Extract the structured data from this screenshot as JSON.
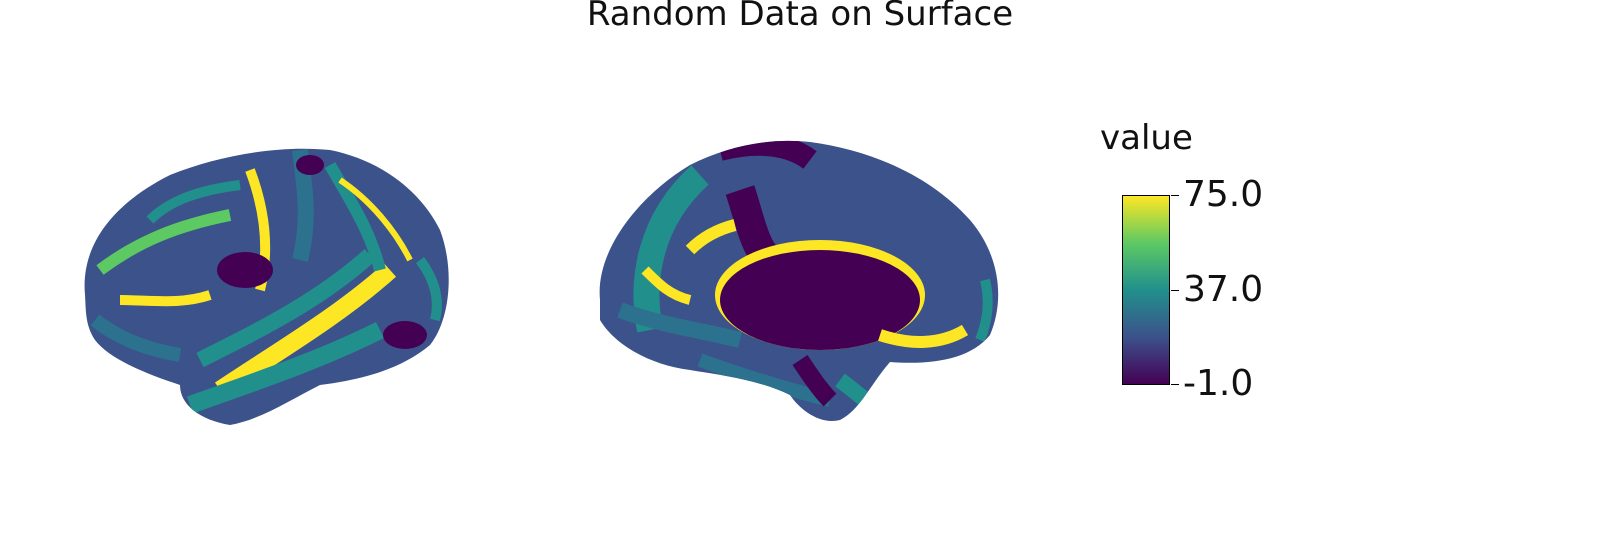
{
  "title": "Random Data on Surface",
  "colorbar": {
    "label": "value",
    "colormap": "viridis",
    "colors": [
      "#440154",
      "#3b528b",
      "#21908c",
      "#5dc963",
      "#fde725"
    ],
    "ticks": [
      "75.0",
      "37.0",
      "-1.0"
    ],
    "min": -1.0,
    "max": 75.0
  },
  "views": [
    "lateral",
    "medial"
  ]
}
